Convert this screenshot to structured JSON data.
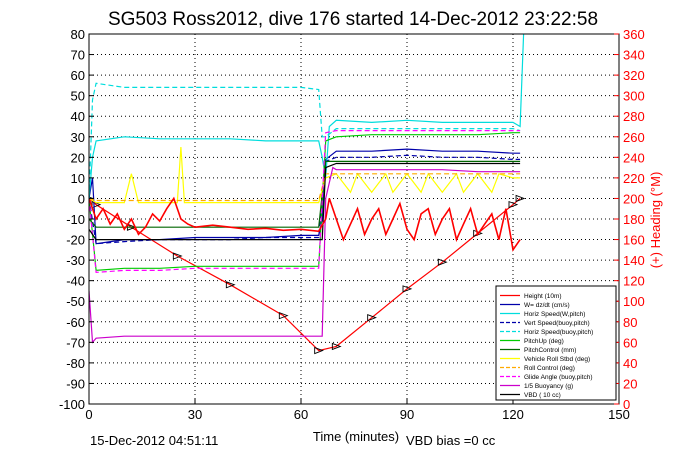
{
  "chart_data": {
    "type": "line",
    "title": "SG503 Ross2012, dive 176 started 14-Dec-2012 23:22:58",
    "xlabel": "Time (minutes)",
    "ylabel_right": "(+) Heading (°M)",
    "footer_left": "15-Dec-2012 04:51:11",
    "footer_right": "VBD bias =0 cc",
    "xlim": [
      0,
      150
    ],
    "ylim": [
      -100,
      80
    ],
    "ylim_right": [
      0,
      360
    ],
    "xticks": [
      "0",
      "30",
      "60",
      "90",
      "120",
      "150"
    ],
    "xtick_values": [
      0,
      30,
      60,
      90,
      120,
      150
    ],
    "yticks": [
      "80",
      "70",
      "60",
      "50",
      "40",
      "30",
      "20",
      "10",
      "0",
      "-10",
      "-20",
      "-30",
      "-40",
      "-50",
      "-60",
      "-70",
      "-80",
      "-90",
      "-100"
    ],
    "ytick_values": [
      80,
      70,
      60,
      50,
      40,
      30,
      20,
      10,
      0,
      -10,
      -20,
      -30,
      -40,
      -50,
      -60,
      -70,
      -80,
      -90,
      -100
    ],
    "yticks_right": [
      "360",
      "340",
      "320",
      "300",
      "280",
      "260",
      "240",
      "220",
      "200",
      "180",
      "160",
      "140",
      "120",
      "100",
      "80",
      "60",
      "40",
      "20",
      "0"
    ],
    "ytick_values_right": [
      360,
      340,
      320,
      300,
      280,
      260,
      240,
      220,
      200,
      180,
      160,
      140,
      120,
      100,
      80,
      60,
      40,
      20,
      0
    ],
    "grid": true,
    "legend_position": "bottom-right",
    "series": [
      {
        "name": "Height (10m)",
        "color": "#ff0000",
        "style": "solid",
        "marker": "triangle",
        "x": [
          0,
          2,
          12,
          25,
          40,
          55,
          65,
          70,
          80,
          90,
          100,
          110,
          120,
          122
        ],
        "y": [
          0,
          -3,
          -14,
          -28,
          -42,
          -57,
          -74,
          -72,
          -58,
          -44,
          -31,
          -17,
          -3,
          0
        ]
      },
      {
        "name": "W= dz/dt (cm/s)",
        "color": "#0000aa",
        "style": "solid",
        "x": [
          0,
          1,
          2,
          10,
          20,
          30,
          40,
          50,
          60,
          65,
          66,
          67,
          70,
          80,
          90,
          100,
          110,
          120,
          122
        ],
        "y": [
          0,
          10,
          -22,
          -20,
          -20,
          -19,
          -19,
          -19,
          -18,
          -18,
          -10,
          19,
          23,
          23,
          24,
          23,
          23,
          22,
          22
        ]
      },
      {
        "name": "Horiz Speed(W,pitch)",
        "color": "#00dddd",
        "style": "solid",
        "x": [
          0,
          1,
          2,
          10,
          20,
          30,
          40,
          50,
          60,
          65,
          66,
          67,
          68,
          70,
          80,
          90,
          100,
          110,
          120,
          122,
          123
        ],
        "y": [
          0,
          20,
          28,
          30,
          29,
          29,
          29,
          28,
          28,
          28,
          20,
          10,
          35,
          38,
          37,
          38,
          37,
          37,
          37,
          35,
          80
        ]
      },
      {
        "name": "Vert Speed(buoy,pitch)",
        "color": "#0000aa",
        "style": "dashed",
        "x": [
          0,
          2,
          10,
          20,
          30,
          40,
          50,
          60,
          65,
          67,
          70,
          80,
          90,
          100,
          110,
          120,
          122
        ],
        "y": [
          0,
          -22,
          -21,
          -20,
          -20,
          -20,
          -19,
          -19,
          -19,
          18,
          20,
          20,
          21,
          20,
          20,
          19,
          19
        ]
      },
      {
        "name": "Horiz Speed(buoy,pitch)",
        "color": "#00dddd",
        "style": "dashed",
        "x": [
          0,
          1,
          2,
          10,
          20,
          30,
          40,
          50,
          60,
          65,
          66,
          67,
          70,
          80,
          90,
          100,
          110,
          120,
          122
        ],
        "y": [
          0,
          48,
          56,
          54,
          54,
          54,
          54,
          54,
          54,
          53,
          30,
          30,
          34,
          34,
          34,
          34,
          34,
          34,
          33
        ]
      },
      {
        "name": "PitchUp (deg)",
        "color": "#00cc00",
        "style": "solid",
        "x": [
          0,
          2,
          10,
          20,
          30,
          40,
          50,
          60,
          65,
          67,
          70,
          80,
          90,
          100,
          110,
          120,
          122
        ],
        "y": [
          0,
          -35,
          -34,
          -34,
          -33,
          -33,
          -33,
          -33,
          -33,
          28,
          30,
          31,
          31,
          31,
          31,
          32,
          32
        ]
      },
      {
        "name": "PitchControl (mm)",
        "color": "#006600",
        "style": "solid",
        "x": [
          0,
          2,
          10,
          20,
          30,
          40,
          50,
          60,
          65,
          67,
          70,
          80,
          90,
          100,
          110,
          120,
          122
        ],
        "y": [
          -10,
          -14,
          -14,
          -14,
          -14,
          -14,
          -14,
          -14,
          -14,
          18,
          18,
          18,
          18,
          18,
          18,
          18,
          18
        ]
      },
      {
        "name": "Vehicle Roll Stbd (deg)",
        "color": "#ffff00",
        "style": "solid",
        "x": [
          0,
          2,
          10,
          12,
          14,
          20,
          25,
          26,
          27,
          30,
          40,
          50,
          60,
          65,
          67,
          70,
          74,
          76,
          80,
          84,
          86,
          90,
          94,
          96,
          100,
          104,
          106,
          110,
          114,
          116,
          120,
          122
        ],
        "y": [
          0,
          -2,
          -2,
          12,
          -2,
          -2,
          -2,
          25,
          -2,
          -2,
          -2,
          -2,
          -2,
          -2,
          10,
          12,
          3,
          12,
          3,
          12,
          3,
          12,
          3,
          12,
          3,
          12,
          3,
          12,
          3,
          12,
          10,
          10
        ]
      },
      {
        "name": "Roll Control (deg)",
        "color": "#ffaa00",
        "style": "dashed",
        "x": [
          0,
          2,
          10,
          20,
          30,
          40,
          50,
          60,
          65,
          67,
          70,
          80,
          90,
          100,
          110,
          120,
          122
        ],
        "y": [
          0,
          -1,
          -1,
          -1,
          -1,
          -1,
          -1,
          -1,
          -1,
          12,
          12,
          12,
          12,
          12,
          12,
          12,
          12
        ]
      },
      {
        "name": "Glide Angle (buoy,pitch)",
        "color": "#ff00ff",
        "style": "dashed",
        "x": [
          0,
          2,
          10,
          20,
          30,
          40,
          50,
          60,
          65,
          67,
          70,
          80,
          90,
          100,
          110,
          120,
          122
        ],
        "y": [
          0,
          -36,
          -35,
          -35,
          -34,
          -34,
          -34,
          -34,
          -34,
          32,
          33,
          33,
          33,
          33,
          33,
          33,
          33
        ]
      },
      {
        "name": "1/5 Buoyancy (g)",
        "color": "#cc00cc",
        "style": "solid",
        "x": [
          0,
          1,
          2,
          10,
          20,
          30,
          40,
          50,
          60,
          66,
          67,
          69,
          70,
          80,
          90,
          100,
          110,
          120,
          122
        ],
        "y": [
          -45,
          -70,
          -68,
          -67,
          -67,
          -67,
          -67,
          -67,
          -67,
          -67,
          0,
          15,
          14,
          14,
          14,
          14,
          13,
          13,
          13
        ]
      },
      {
        "name": "VBD ( 10 cc)",
        "color": "#000000",
        "style": "solid",
        "x": [
          0,
          2,
          10,
          20,
          30,
          40,
          50,
          60,
          66,
          67,
          70,
          80,
          90,
          100,
          110,
          120,
          122
        ],
        "y": [
          -15,
          -20,
          -20,
          -20,
          -20,
          -20,
          -20,
          -20,
          -20,
          15,
          17,
          17,
          17,
          17,
          17,
          17,
          17
        ]
      },
      {
        "name": "Heading",
        "color": "#ff0000",
        "style": "solid",
        "axis": "right",
        "x": [
          0,
          2,
          4,
          6,
          8,
          10,
          12,
          14,
          16,
          18,
          20,
          22,
          24,
          26,
          28,
          30,
          35,
          40,
          45,
          50,
          55,
          60,
          65,
          67,
          68,
          70,
          72,
          74,
          76,
          78,
          80,
          82,
          84,
          86,
          88,
          90,
          92,
          94,
          96,
          98,
          100,
          102,
          104,
          106,
          108,
          110,
          112,
          114,
          116,
          118,
          120,
          122
        ],
        "y": [
          200,
          180,
          190,
          175,
          185,
          170,
          180,
          165,
          172,
          185,
          178,
          190,
          200,
          180,
          175,
          172,
          174,
          172,
          170,
          171,
          169,
          170,
          168,
          180,
          200,
          180,
          160,
          175,
          190,
          165,
          180,
          190,
          165,
          180,
          195,
          170,
          160,
          185,
          190,
          165,
          180,
          190,
          160,
          175,
          190,
          165,
          175,
          185,
          160,
          190,
          150,
          160
        ]
      }
    ]
  }
}
